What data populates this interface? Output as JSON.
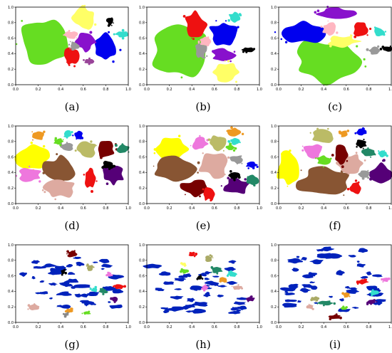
{
  "axes": {
    "x_ticks": [
      "0.0",
      "0.2",
      "0.4",
      "0.6",
      "0.8",
      "1.0"
    ],
    "y_ticks": [
      "0.0",
      "0.2",
      "0.4",
      "0.6",
      "0.8",
      "1.0"
    ],
    "xlim": [
      0,
      1
    ],
    "ylim": [
      0,
      1
    ]
  },
  "chart_data": [
    {
      "type": "scatter",
      "label": "(a)",
      "xlim": [
        0,
        1
      ],
      "ylim": [
        0,
        1
      ],
      "clusters": [
        {
          "color": "#66dd22",
          "cx": 0.25,
          "cy": 0.58,
          "rx": 0.2,
          "ry": 0.3
        },
        {
          "color": "#ffff66",
          "cx": 0.6,
          "cy": 0.86,
          "rx": 0.1,
          "ry": 0.14
        },
        {
          "color": "#0000ee",
          "cx": 0.8,
          "cy": 0.47,
          "rx": 0.11,
          "ry": 0.17
        },
        {
          "color": "#8811cc",
          "cx": 0.62,
          "cy": 0.55,
          "rx": 0.08,
          "ry": 0.11
        },
        {
          "color": "#ee1111",
          "cx": 0.5,
          "cy": 0.38,
          "rx": 0.06,
          "ry": 0.12
        },
        {
          "color": "#999999",
          "cx": 0.52,
          "cy": 0.5,
          "rx": 0.04,
          "ry": 0.06
        },
        {
          "color": "#ffb6c1",
          "cx": 0.49,
          "cy": 0.64,
          "rx": 0.06,
          "ry": 0.05
        },
        {
          "color": "#000000",
          "cx": 0.84,
          "cy": 0.82,
          "rx": 0.03,
          "ry": 0.05
        },
        {
          "color": "#33ddcc",
          "cx": 0.95,
          "cy": 0.65,
          "rx": 0.06,
          "ry": 0.04
        },
        {
          "color": "#994499",
          "cx": 0.65,
          "cy": 0.3,
          "rx": 0.04,
          "ry": 0.03
        }
      ]
    },
    {
      "type": "scatter",
      "label": "(b)",
      "xlim": [
        0,
        1
      ],
      "ylim": [
        0,
        1
      ],
      "clusters": [
        {
          "color": "#66dd22",
          "cx": 0.28,
          "cy": 0.44,
          "rx": 0.23,
          "ry": 0.33
        },
        {
          "color": "#ee1111",
          "cx": 0.43,
          "cy": 0.78,
          "rx": 0.09,
          "ry": 0.15
        },
        {
          "color": "#0000ee",
          "cx": 0.68,
          "cy": 0.65,
          "rx": 0.12,
          "ry": 0.16
        },
        {
          "color": "#8811cc",
          "cx": 0.68,
          "cy": 0.38,
          "rx": 0.1,
          "ry": 0.08
        },
        {
          "color": "#ffff66",
          "cx": 0.7,
          "cy": 0.16,
          "rx": 0.12,
          "ry": 0.12
        },
        {
          "color": "#999999",
          "cx": 0.48,
          "cy": 0.44,
          "rx": 0.05,
          "ry": 0.11
        },
        {
          "color": "#ffb6c1",
          "cx": 0.52,
          "cy": 0.55,
          "rx": 0.05,
          "ry": 0.06
        },
        {
          "color": "#33ddcc",
          "cx": 0.78,
          "cy": 0.87,
          "rx": 0.05,
          "ry": 0.06
        },
        {
          "color": "#000000",
          "cx": 0.9,
          "cy": 0.45,
          "rx": 0.05,
          "ry": 0.03
        }
      ]
    },
    {
      "type": "scatter",
      "label": "(c)",
      "xlim": [
        0,
        1
      ],
      "ylim": [
        0,
        1
      ],
      "clusters": [
        {
          "color": "#66dd22",
          "cx": 0.42,
          "cy": 0.3,
          "rx": 0.3,
          "ry": 0.27
        },
        {
          "color": "#0000ee",
          "cx": 0.22,
          "cy": 0.67,
          "rx": 0.2,
          "ry": 0.13
        },
        {
          "color": "#8811cc",
          "cx": 0.52,
          "cy": 0.91,
          "rx": 0.16,
          "ry": 0.08
        },
        {
          "color": "#ffff66",
          "cx": 0.57,
          "cy": 0.56,
          "rx": 0.14,
          "ry": 0.07
        },
        {
          "color": "#ee1111",
          "cx": 0.73,
          "cy": 0.71,
          "rx": 0.07,
          "ry": 0.1
        },
        {
          "color": "#ffb6c1",
          "cx": 0.45,
          "cy": 0.72,
          "rx": 0.06,
          "ry": 0.08
        },
        {
          "color": "#999999",
          "cx": 0.85,
          "cy": 0.44,
          "rx": 0.05,
          "ry": 0.05
        },
        {
          "color": "#000000",
          "cx": 0.97,
          "cy": 0.46,
          "rx": 0.05,
          "ry": 0.03
        },
        {
          "color": "#33ddcc",
          "cx": 0.89,
          "cy": 0.68,
          "rx": 0.05,
          "ry": 0.06
        }
      ]
    },
    {
      "type": "scatter",
      "label": "(d)",
      "xlim": [
        0,
        1
      ],
      "ylim": [
        0,
        1
      ],
      "clusters": [
        {
          "color": "#ffff00",
          "cx": 0.15,
          "cy": 0.6,
          "rx": 0.14,
          "ry": 0.15
        },
        {
          "color": "#885533",
          "cx": 0.4,
          "cy": 0.45,
          "rx": 0.14,
          "ry": 0.15
        },
        {
          "color": "#ddaaa0",
          "cx": 0.4,
          "cy": 0.2,
          "rx": 0.14,
          "ry": 0.13
        },
        {
          "color": "#ee77dd",
          "cx": 0.13,
          "cy": 0.37,
          "rx": 0.1,
          "ry": 0.09
        },
        {
          "color": "#bbbb66",
          "cx": 0.63,
          "cy": 0.7,
          "rx": 0.08,
          "ry": 0.1
        },
        {
          "color": "#770000",
          "cx": 0.8,
          "cy": 0.7,
          "rx": 0.08,
          "ry": 0.1
        },
        {
          "color": "#ee1111",
          "cx": 0.66,
          "cy": 0.33,
          "rx": 0.05,
          "ry": 0.14
        },
        {
          "color": "#550077",
          "cx": 0.87,
          "cy": 0.38,
          "rx": 0.09,
          "ry": 0.13
        },
        {
          "color": "#ee9922",
          "cx": 0.2,
          "cy": 0.88,
          "rx": 0.06,
          "ry": 0.06
        },
        {
          "color": "#000000",
          "cx": 0.82,
          "cy": 0.5,
          "rx": 0.05,
          "ry": 0.05
        },
        {
          "color": "#228866",
          "cx": 0.95,
          "cy": 0.7,
          "rx": 0.06,
          "ry": 0.06
        },
        {
          "color": "#0000ee",
          "cx": 0.56,
          "cy": 0.88,
          "rx": 0.04,
          "ry": 0.05
        },
        {
          "color": "#999999",
          "cx": 0.45,
          "cy": 0.73,
          "rx": 0.06,
          "ry": 0.05
        },
        {
          "color": "#33ddcc",
          "cx": 0.46,
          "cy": 0.9,
          "rx": 0.04,
          "ry": 0.04
        },
        {
          "color": "#66dd22",
          "cx": 0.38,
          "cy": 0.8,
          "rx": 0.04,
          "ry": 0.04
        }
      ]
    },
    {
      "type": "scatter",
      "label": "(e)",
      "xlim": [
        0,
        1
      ],
      "ylim": [
        0,
        1
      ],
      "clusters": [
        {
          "color": "#ffff00",
          "cx": 0.22,
          "cy": 0.7,
          "rx": 0.14,
          "ry": 0.16
        },
        {
          "color": "#885533",
          "cx": 0.25,
          "cy": 0.45,
          "rx": 0.18,
          "ry": 0.14
        },
        {
          "color": "#770000",
          "cx": 0.43,
          "cy": 0.2,
          "rx": 0.12,
          "ry": 0.1
        },
        {
          "color": "#ddaaa0",
          "cx": 0.6,
          "cy": 0.5,
          "rx": 0.14,
          "ry": 0.15
        },
        {
          "color": "#550077",
          "cx": 0.8,
          "cy": 0.22,
          "rx": 0.12,
          "ry": 0.1
        },
        {
          "color": "#ee77dd",
          "cx": 0.47,
          "cy": 0.77,
          "rx": 0.07,
          "ry": 0.08
        },
        {
          "color": "#bbbb66",
          "cx": 0.63,
          "cy": 0.78,
          "rx": 0.07,
          "ry": 0.1
        },
        {
          "color": "#ee9922",
          "cx": 0.78,
          "cy": 0.92,
          "rx": 0.06,
          "ry": 0.05
        },
        {
          "color": "#000000",
          "cx": 0.77,
          "cy": 0.36,
          "rx": 0.05,
          "ry": 0.05
        },
        {
          "color": "#228866",
          "cx": 0.94,
          "cy": 0.3,
          "rx": 0.05,
          "ry": 0.06
        },
        {
          "color": "#999999",
          "cx": 0.8,
          "cy": 0.57,
          "rx": 0.06,
          "ry": 0.05
        },
        {
          "color": "#0000ee",
          "cx": 0.93,
          "cy": 0.5,
          "rx": 0.05,
          "ry": 0.04
        },
        {
          "color": "#ee1111",
          "cx": 0.55,
          "cy": 0.12,
          "rx": 0.05,
          "ry": 0.08
        },
        {
          "color": "#33ddcc",
          "cx": 0.78,
          "cy": 0.8,
          "rx": 0.04,
          "ry": 0.04
        },
        {
          "color": "#66dd22",
          "cx": 0.74,
          "cy": 0.72,
          "rx": 0.04,
          "ry": 0.04
        }
      ]
    },
    {
      "type": "scatter",
      "label": "(f)",
      "xlim": [
        0,
        1
      ],
      "ylim": [
        0,
        1
      ],
      "clusters": [
        {
          "color": "#ffff00",
          "cx": 0.08,
          "cy": 0.45,
          "rx": 0.09,
          "ry": 0.2
        },
        {
          "color": "#885533",
          "cx": 0.4,
          "cy": 0.28,
          "rx": 0.22,
          "ry": 0.17
        },
        {
          "color": "#ddaaa0",
          "cx": 0.63,
          "cy": 0.52,
          "rx": 0.12,
          "ry": 0.12
        },
        {
          "color": "#bbbb66",
          "cx": 0.4,
          "cy": 0.87,
          "rx": 0.1,
          "ry": 0.09
        },
        {
          "color": "#770000",
          "cx": 0.55,
          "cy": 0.62,
          "rx": 0.06,
          "ry": 0.12
        },
        {
          "color": "#ee77dd",
          "cx": 0.3,
          "cy": 0.68,
          "rx": 0.08,
          "ry": 0.09
        },
        {
          "color": "#66dd22",
          "cx": 0.4,
          "cy": 0.55,
          "rx": 0.06,
          "ry": 0.06
        },
        {
          "color": "#550077",
          "cx": 0.91,
          "cy": 0.4,
          "rx": 0.09,
          "ry": 0.13
        },
        {
          "color": "#ee1111",
          "cx": 0.68,
          "cy": 0.2,
          "rx": 0.05,
          "ry": 0.08
        },
        {
          "color": "#000000",
          "cx": 0.73,
          "cy": 0.77,
          "rx": 0.05,
          "ry": 0.05
        },
        {
          "color": "#228866",
          "cx": 0.8,
          "cy": 0.66,
          "rx": 0.06,
          "ry": 0.05
        },
        {
          "color": "#999999",
          "cx": 0.76,
          "cy": 0.38,
          "rx": 0.05,
          "ry": 0.05
        },
        {
          "color": "#0000ee",
          "cx": 0.74,
          "cy": 0.92,
          "rx": 0.05,
          "ry": 0.04
        },
        {
          "color": "#33ddcc",
          "cx": 0.92,
          "cy": 0.64,
          "rx": 0.04,
          "ry": 0.04
        },
        {
          "color": "#ee9922",
          "cx": 0.58,
          "cy": 0.9,
          "rx": 0.04,
          "ry": 0.04
        }
      ]
    },
    {
      "type": "scatter",
      "label": "(g)",
      "xlim": [
        0,
        1
      ],
      "ylim": [
        0,
        1
      ],
      "background": {
        "color": "#0022bb",
        "n": 46,
        "x": [
          0.05,
          0.9
        ],
        "y": [
          0.15,
          0.85
        ],
        "rmin": 0.012,
        "rmax": 0.035
      },
      "clusters": [
        {
          "color": "#770000",
          "cx": 0.5,
          "cy": 0.88,
          "rx": 0.04,
          "ry": 0.04
        },
        {
          "color": "#aaaa66",
          "cx": 0.66,
          "cy": 0.7,
          "rx": 0.03,
          "ry": 0.04
        },
        {
          "color": "#ee1111",
          "cx": 0.92,
          "cy": 0.46,
          "rx": 0.04,
          "ry": 0.03
        },
        {
          "color": "#228866",
          "cx": 0.78,
          "cy": 0.4,
          "rx": 0.04,
          "ry": 0.03
        },
        {
          "color": "#33ddcc",
          "cx": 0.7,
          "cy": 0.42,
          "rx": 0.03,
          "ry": 0.03
        },
        {
          "color": "#ddaaa0",
          "cx": 0.17,
          "cy": 0.19,
          "rx": 0.05,
          "ry": 0.04
        },
        {
          "color": "#ee9922",
          "cx": 0.47,
          "cy": 0.15,
          "rx": 0.03,
          "ry": 0.03
        },
        {
          "color": "#ee77dd",
          "cx": 0.83,
          "cy": 0.62,
          "rx": 0.02,
          "ry": 0.03
        },
        {
          "color": "#66dd22",
          "cx": 0.63,
          "cy": 0.12,
          "rx": 0.03,
          "ry": 0.02
        },
        {
          "color": "#550077",
          "cx": 0.88,
          "cy": 0.3,
          "rx": 0.03,
          "ry": 0.03
        },
        {
          "color": "#000000",
          "cx": 0.42,
          "cy": 0.65,
          "rx": 0.02,
          "ry": 0.03
        },
        {
          "color": "#888888",
          "cx": 0.45,
          "cy": 0.1,
          "rx": 0.02,
          "ry": 0.02
        }
      ]
    },
    {
      "type": "scatter",
      "label": "(h)",
      "xlim": [
        0,
        1
      ],
      "ylim": [
        0,
        1
      ],
      "background": {
        "color": "#0022bb",
        "n": 46,
        "x": [
          0.05,
          0.85
        ],
        "y": [
          0.12,
          0.8
        ],
        "rmin": 0.012,
        "rmax": 0.035
      },
      "clusters": [
        {
          "color": "#ee1111",
          "cx": 0.4,
          "cy": 0.88,
          "rx": 0.03,
          "ry": 0.03
        },
        {
          "color": "#228866",
          "cx": 0.62,
          "cy": 0.68,
          "rx": 0.05,
          "ry": 0.04
        },
        {
          "color": "#aaaa66",
          "cx": 0.55,
          "cy": 0.82,
          "rx": 0.03,
          "ry": 0.04
        },
        {
          "color": "#33ddcc",
          "cx": 0.76,
          "cy": 0.62,
          "rx": 0.04,
          "ry": 0.03
        },
        {
          "color": "#ee9922",
          "cx": 0.68,
          "cy": 0.55,
          "rx": 0.03,
          "ry": 0.04
        },
        {
          "color": "#ee77dd",
          "cx": 0.52,
          "cy": 0.45,
          "rx": 0.03,
          "ry": 0.03
        },
        {
          "color": "#ddaaa0",
          "cx": 0.8,
          "cy": 0.45,
          "rx": 0.04,
          "ry": 0.03
        },
        {
          "color": "#550077",
          "cx": 0.92,
          "cy": 0.3,
          "rx": 0.04,
          "ry": 0.03
        },
        {
          "color": "#000000",
          "cx": 0.47,
          "cy": 0.58,
          "rx": 0.02,
          "ry": 0.03
        },
        {
          "color": "#66dd22",
          "cx": 0.34,
          "cy": 0.66,
          "rx": 0.03,
          "ry": 0.03
        },
        {
          "color": "#ffff66",
          "cx": 0.33,
          "cy": 0.75,
          "rx": 0.02,
          "ry": 0.02
        }
      ]
    },
    {
      "type": "scatter",
      "label": "(i)",
      "xlim": [
        0,
        1
      ],
      "ylim": [
        0,
        1
      ],
      "background": {
        "color": "#0022bb",
        "n": 48,
        "x": [
          0.05,
          0.9
        ],
        "y": [
          0.15,
          0.95
        ],
        "rmin": 0.012,
        "rmax": 0.038
      },
      "clusters": [
        {
          "color": "#770000",
          "cx": 0.5,
          "cy": 0.07,
          "rx": 0.05,
          "ry": 0.03
        },
        {
          "color": "#228866",
          "cx": 0.42,
          "cy": 0.25,
          "rx": 0.06,
          "ry": 0.03
        },
        {
          "color": "#ee1111",
          "cx": 0.74,
          "cy": 0.52,
          "rx": 0.05,
          "ry": 0.03
        },
        {
          "color": "#33ddcc",
          "cx": 0.85,
          "cy": 0.38,
          "rx": 0.04,
          "ry": 0.03
        },
        {
          "color": "#ee9922",
          "cx": 0.6,
          "cy": 0.35,
          "rx": 0.03,
          "ry": 0.03
        },
        {
          "color": "#ee77dd",
          "cx": 0.95,
          "cy": 0.55,
          "rx": 0.03,
          "ry": 0.03
        },
        {
          "color": "#aaaa66",
          "cx": 0.33,
          "cy": 0.3,
          "rx": 0.03,
          "ry": 0.03
        },
        {
          "color": "#ddaaa0",
          "cx": 0.28,
          "cy": 0.2,
          "rx": 0.03,
          "ry": 0.03
        },
        {
          "color": "#66dd22",
          "cx": 0.58,
          "cy": 0.18,
          "rx": 0.03,
          "ry": 0.02
        },
        {
          "color": "#550077",
          "cx": 0.82,
          "cy": 0.26,
          "rx": 0.04,
          "ry": 0.03
        }
      ]
    }
  ]
}
